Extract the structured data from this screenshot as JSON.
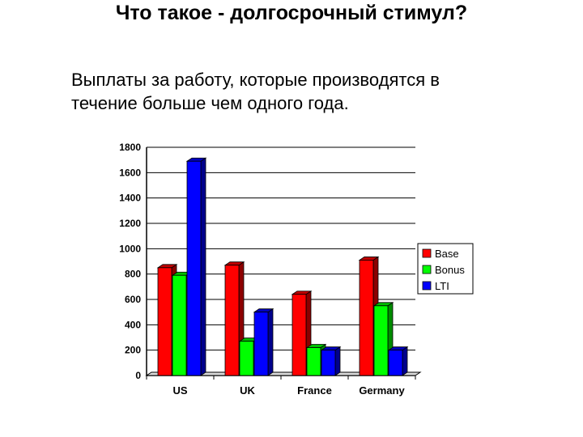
{
  "slide": {
    "title": "Что такое - долгосрочный стимул?",
    "text": "Выплаты за работу, которые производятся в течение больше чем одного года."
  },
  "colors": {
    "Base": "#ff0000",
    "Bonus": "#00ff00",
    "LTI": "#0000ff"
  },
  "chart_data": {
    "type": "bar",
    "categories": [
      "US",
      "UK",
      "France",
      "Germany"
    ],
    "series": [
      {
        "name": "Base",
        "values": [
          850,
          870,
          640,
          910
        ]
      },
      {
        "name": "Bonus",
        "values": [
          790,
          270,
          220,
          550
        ]
      },
      {
        "name": "LTI",
        "values": [
          1690,
          500,
          200,
          200
        ]
      }
    ],
    "ylim": [
      0,
      1800
    ],
    "yticks": [
      0,
      200,
      400,
      600,
      800,
      1000,
      1200,
      1400,
      1600,
      1800
    ],
    "grid": true,
    "legend": "right"
  }
}
